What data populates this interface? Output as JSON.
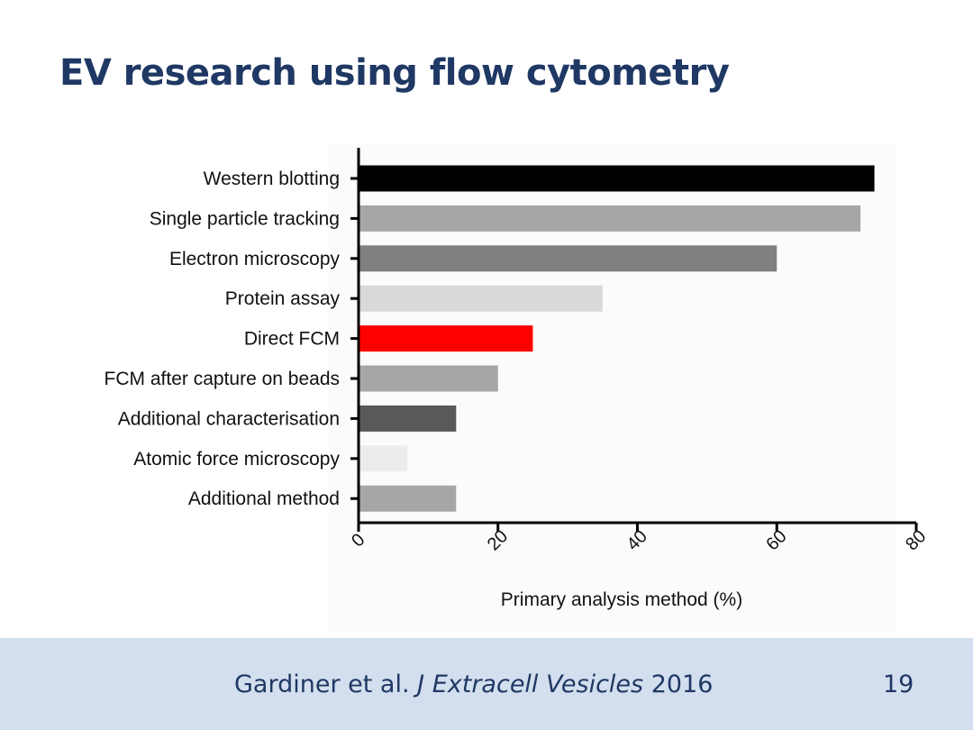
{
  "slide": {
    "title": "EV research using flow cytometry",
    "citation_authors": "Gardiner et al.",
    "citation_journal": "J Extracell Vesicles",
    "citation_year": "2016",
    "page_number": "19"
  },
  "chart_data": {
    "type": "bar",
    "orientation": "horizontal",
    "categories": [
      "Western blotting",
      "Single particle tracking",
      "Electron microscopy",
      "Protein assay",
      "Direct FCM",
      "FCM after capture on beads",
      "Additional characterisation",
      "Atomic force microscopy",
      "Additional method"
    ],
    "values": [
      74,
      72,
      60,
      35,
      25,
      20,
      14,
      7,
      14
    ],
    "colors": [
      "#000000",
      "#a6a6a6",
      "#808080",
      "#d9d9d9",
      "#ff0000",
      "#a6a6a6",
      "#595959",
      "#ececec",
      "#a6a6a6"
    ],
    "xlabel": "Primary analysis method (%)",
    "ylabel": "",
    "xlim": [
      0,
      80
    ],
    "xticks": [
      0,
      20,
      40,
      60,
      80
    ],
    "grid": false
  }
}
